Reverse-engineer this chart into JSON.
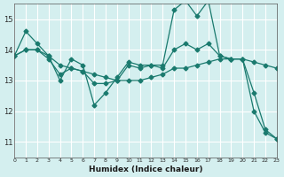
{
  "xlabel": "Humidex (Indice chaleur)",
  "ylabel": "",
  "background_color": "#d4efef",
  "grid_color": "#ffffff",
  "line_color": "#1a7a6e",
  "xlim": [
    0,
    23
  ],
  "ylim": [
    10.5,
    15.5
  ],
  "yticks": [
    11,
    12,
    13,
    14,
    15
  ],
  "xticks": [
    0,
    1,
    2,
    3,
    4,
    5,
    6,
    7,
    8,
    9,
    10,
    11,
    12,
    13,
    14,
    15,
    16,
    17,
    18,
    19,
    20,
    21,
    22,
    23
  ],
  "series": [
    [
      13.8,
      14.6,
      14.2,
      13.8,
      13.0,
      13.7,
      13.5,
      12.2,
      12.6,
      13.1,
      13.6,
      13.5,
      13.5,
      13.5,
      15.3,
      15.6,
      15.1,
      15.6,
      13.8,
      13.7,
      13.7,
      12.0,
      11.3,
      11.1
    ],
    [
      13.8,
      14.0,
      14.0,
      13.8,
      13.5,
      13.4,
      13.3,
      13.2,
      13.1,
      13.0,
      13.0,
      13.0,
      13.1,
      13.2,
      13.4,
      13.4,
      13.5,
      13.6,
      13.7,
      13.7,
      13.7,
      13.6,
      13.5,
      13.4
    ],
    [
      13.8,
      14.0,
      14.0,
      13.7,
      13.2,
      13.4,
      13.3,
      12.9,
      12.9,
      13.0,
      13.5,
      13.4,
      13.5,
      13.4,
      14.0,
      14.2,
      14.0,
      14.2,
      13.8,
      13.7,
      13.7,
      12.6,
      11.4,
      11.1
    ]
  ]
}
